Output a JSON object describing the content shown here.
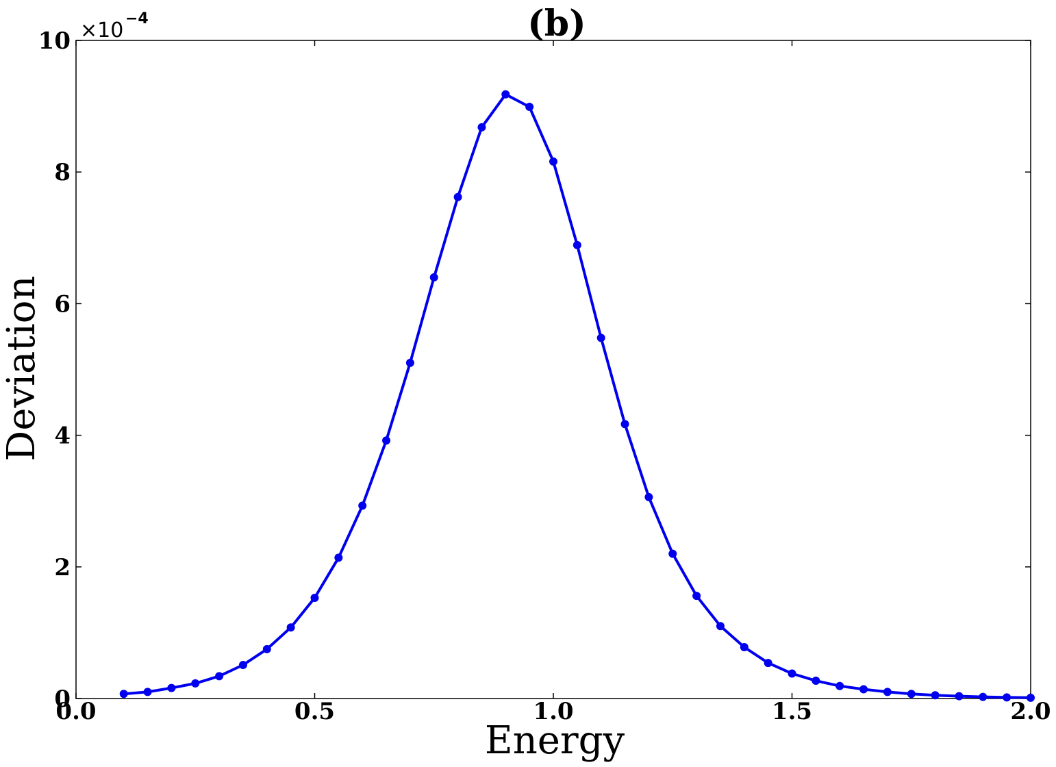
{
  "chart_data": {
    "type": "line",
    "title": "(b)",
    "xlabel": "Energy",
    "ylabel": "Deviation",
    "xlim": [
      0.0,
      2.0
    ],
    "ylim": [
      0,
      10
    ],
    "x_tick_labels": [
      "0.0",
      "0.5",
      "1.0",
      "1.5",
      "2.0"
    ],
    "x_tick_values": [
      0.0,
      0.5,
      1.0,
      1.5,
      2.0
    ],
    "y_tick_labels": [
      "0",
      "2",
      "4",
      "6",
      "8",
      "10"
    ],
    "y_tick_values": [
      0,
      2,
      4,
      6,
      8,
      10
    ],
    "y_offset_text": "×10",
    "y_offset_exponent": "−4",
    "grid": false,
    "line_color": "#0000ee",
    "series": [
      {
        "x": [
          0.1,
          0.15,
          0.2,
          0.25,
          0.3,
          0.35,
          0.4,
          0.45,
          0.5,
          0.55,
          0.6,
          0.65,
          0.7,
          0.75,
          0.8,
          0.85,
          0.9,
          0.95,
          1.0,
          1.05,
          1.1,
          1.15,
          1.2,
          1.25,
          1.3,
          1.35,
          1.4,
          1.45,
          1.5,
          1.55,
          1.6,
          1.65,
          1.7,
          1.75,
          1.8,
          1.85,
          1.9,
          1.95,
          2.0
        ],
        "values": [
          0.07,
          0.1,
          0.16,
          0.23,
          0.34,
          0.51,
          0.75,
          1.08,
          1.53,
          2.14,
          2.93,
          3.92,
          5.1,
          6.4,
          7.62,
          8.68,
          9.18,
          8.99,
          8.16,
          6.89,
          5.48,
          4.17,
          3.06,
          2.2,
          1.56,
          1.1,
          0.78,
          0.54,
          0.38,
          0.27,
          0.19,
          0.14,
          0.1,
          0.07,
          0.05,
          0.035,
          0.025,
          0.017,
          0.012
        ]
      }
    ]
  }
}
